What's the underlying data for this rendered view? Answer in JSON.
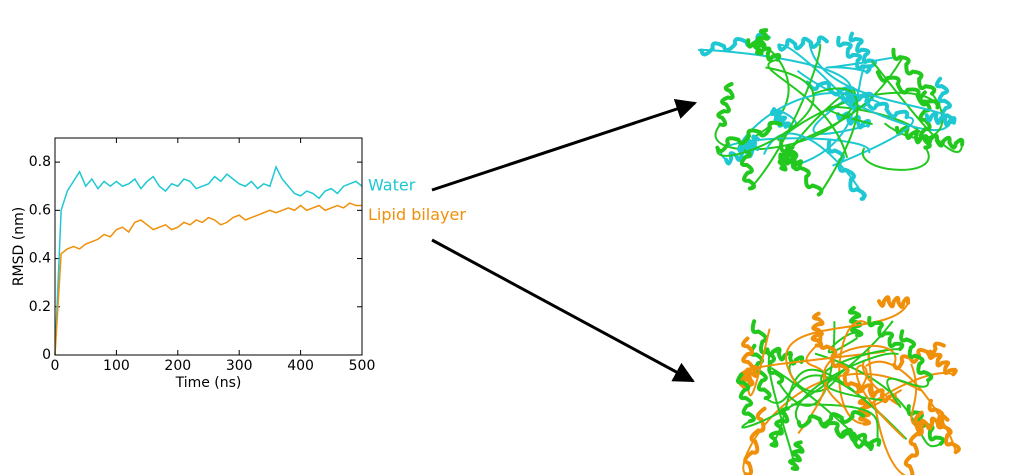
{
  "chart_data": {
    "type": "line",
    "xlabel": "Time (ns)",
    "ylabel": "RMSD (nm)",
    "x": [
      0,
      10,
      20,
      30,
      40,
      50,
      60,
      70,
      80,
      90,
      100,
      110,
      120,
      130,
      140,
      150,
      160,
      170,
      180,
      190,
      200,
      210,
      220,
      230,
      240,
      250,
      260,
      270,
      280,
      290,
      300,
      310,
      320,
      330,
      340,
      350,
      360,
      370,
      380,
      390,
      400,
      410,
      420,
      430,
      440,
      450,
      460,
      470,
      480,
      490,
      500
    ],
    "series": [
      {
        "name": "Water",
        "color": "#1ec8d2",
        "values": [
          0,
          0.6,
          0.68,
          0.72,
          0.76,
          0.7,
          0.73,
          0.69,
          0.72,
          0.7,
          0.72,
          0.7,
          0.71,
          0.73,
          0.69,
          0.72,
          0.74,
          0.7,
          0.68,
          0.71,
          0.7,
          0.73,
          0.72,
          0.69,
          0.7,
          0.71,
          0.74,
          0.72,
          0.75,
          0.73,
          0.71,
          0.7,
          0.72,
          0.69,
          0.71,
          0.7,
          0.78,
          0.73,
          0.7,
          0.67,
          0.66,
          0.68,
          0.67,
          0.65,
          0.68,
          0.69,
          0.67,
          0.7,
          0.71,
          0.72,
          0.7
        ]
      },
      {
        "name": "Lipid bilayer",
        "color": "#f0900a",
        "values": [
          0,
          0.42,
          0.44,
          0.45,
          0.44,
          0.46,
          0.47,
          0.48,
          0.5,
          0.49,
          0.52,
          0.53,
          0.51,
          0.55,
          0.56,
          0.54,
          0.52,
          0.53,
          0.54,
          0.52,
          0.53,
          0.55,
          0.54,
          0.56,
          0.55,
          0.57,
          0.56,
          0.54,
          0.55,
          0.57,
          0.58,
          0.56,
          0.57,
          0.58,
          0.59,
          0.6,
          0.59,
          0.6,
          0.61,
          0.6,
          0.62,
          0.6,
          0.61,
          0.62,
          0.6,
          0.61,
          0.62,
          0.61,
          0.63,
          0.62,
          0.62
        ]
      }
    ],
    "xlim": [
      0,
      500
    ],
    "xticks": [
      0,
      100,
      200,
      300,
      400,
      500
    ],
    "ylim": [
      0,
      0.9
    ],
    "yticks": [
      0,
      0.2,
      0.4,
      0.6,
      0.8
    ]
  }
}
